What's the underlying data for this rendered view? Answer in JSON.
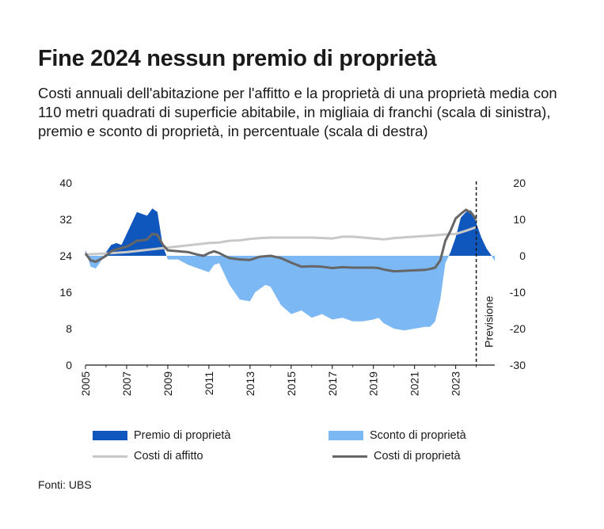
{
  "title": "Fine 2024 nessun premio di proprietà",
  "subtitle": "Costi annuali dell'abitazione per l'affitto e la proprietà di una proprietà media con 110 metri quadrati di superficie abitabile, in migliaia di franchi (scala di sinistra), premio e sconto di proprietà, in percentuale (scala di destra)",
  "source": "Fonti: UBS",
  "colors": {
    "premio": "#0f56bd",
    "sconto": "#7cb8f3",
    "affitto": "#c8c8c8",
    "proprieta": "#666666"
  },
  "chart_data": {
    "type": "area",
    "xlim": [
      2005,
      2024.9
    ],
    "ylim_left": [
      0,
      40
    ],
    "ylim_right": [
      -30,
      20
    ],
    "x_ticks": [
      "2005",
      "2007",
      "2009",
      "2011",
      "2013",
      "2015",
      "2017",
      "2019",
      "2021",
      "2023"
    ],
    "y_ticks_left": [
      "0",
      "8",
      "16",
      "24",
      "32",
      "40"
    ],
    "y_ticks_right": [
      "-30",
      "-20",
      "-10",
      "0",
      "10",
      "20"
    ],
    "forecast_start": 2024,
    "forecast_label": "Previsione",
    "series": [
      {
        "name": "Premio / Sconto di proprietà",
        "axis": "right",
        "x": [
          2005.0,
          2005.25,
          2005.5,
          2005.75,
          2006.0,
          2006.25,
          2006.5,
          2006.75,
          2007.0,
          2007.25,
          2007.5,
          2007.75,
          2008.0,
          2008.25,
          2008.5,
          2008.75,
          2009.0,
          2009.5,
          2010.0,
          2010.5,
          2011.0,
          2011.25,
          2011.5,
          2011.75,
          2012.0,
          2012.5,
          2013.0,
          2013.25,
          2013.75,
          2014.0,
          2014.5,
          2015.0,
          2015.5,
          2016.0,
          2016.5,
          2017.0,
          2017.5,
          2018.0,
          2018.5,
          2019.0,
          2019.25,
          2019.5,
          2020.0,
          2020.5,
          2021.0,
          2021.5,
          2021.75,
          2022.0,
          2022.25,
          2022.5,
          2022.75,
          2023.0,
          2023.25,
          2023.5,
          2023.75,
          2024.0,
          2024.25,
          2024.5,
          2024.75,
          2024.9
        ],
        "values": [
          1.5,
          -3,
          -3.5,
          -1.5,
          1,
          3,
          3.5,
          3,
          6,
          9,
          12,
          11.5,
          11,
          13,
          12,
          3,
          -1,
          -1,
          -2.5,
          -3.5,
          -4.5,
          -2.5,
          -2,
          -5,
          -8,
          -12,
          -12.5,
          -10,
          -8,
          -8.5,
          -13.5,
          -16,
          -15,
          -17,
          -16,
          -17.5,
          -17,
          -18,
          -18,
          -17.5,
          -17,
          -18.5,
          -20,
          -20.5,
          -20,
          -19.5,
          -19.5,
          -18,
          -12,
          -2,
          1,
          5,
          10.5,
          12,
          12.5,
          9,
          5,
          2,
          0,
          -1.5
        ]
      },
      {
        "name": "Costi di affitto",
        "axis": "left",
        "x": [
          2005.0,
          2006.0,
          2007.0,
          2008.0,
          2009.0,
          2010.0,
          2011.0,
          2011.5,
          2012.0,
          2012.5,
          2013.0,
          2013.5,
          2014.0,
          2015.0,
          2016.0,
          2017.0,
          2017.5,
          2018.0,
          2018.5,
          2019.0,
          2019.5,
          2020.0,
          2021.0,
          2022.0,
          2022.5,
          2023.0,
          2023.5,
          2024.0
        ],
        "values": [
          24.3,
          24.5,
          24.8,
          25.3,
          25.8,
          26.3,
          26.8,
          26.9,
          27.3,
          27.4,
          27.7,
          27.9,
          28.0,
          28.0,
          28.0,
          27.8,
          28.2,
          28.2,
          28.0,
          27.8,
          27.6,
          27.9,
          28.2,
          28.5,
          28.7,
          28.8,
          29.5,
          30.3
        ]
      },
      {
        "name": "Costi di proprietà",
        "axis": "left",
        "x": [
          2005.0,
          2005.25,
          2005.5,
          2005.75,
          2006.0,
          2006.25,
          2006.5,
          2006.75,
          2007.0,
          2007.25,
          2007.5,
          2007.75,
          2008.0,
          2008.25,
          2008.5,
          2008.75,
          2009.0,
          2009.5,
          2010.0,
          2010.5,
          2010.75,
          2011.0,
          2011.25,
          2011.5,
          2011.75,
          2012.0,
          2012.5,
          2013.0,
          2013.5,
          2014.0,
          2014.5,
          2015.0,
          2015.5,
          2016.0,
          2016.5,
          2017.0,
          2017.5,
          2018.0,
          2018.5,
          2019.0,
          2019.25,
          2019.5,
          2020.0,
          2020.5,
          2021.0,
          2021.5,
          2021.75,
          2022.0,
          2022.25,
          2022.5,
          2022.75,
          2023.0,
          2023.25,
          2023.5,
          2023.75,
          2024.0
        ],
        "values": [
          24.5,
          23.0,
          22.7,
          23.3,
          24.0,
          25.0,
          25.4,
          25.7,
          26.0,
          26.6,
          27.3,
          27.4,
          27.6,
          28.8,
          28.6,
          26.5,
          25.2,
          25.0,
          24.8,
          24.2,
          24.0,
          24.6,
          25.0,
          24.6,
          24.0,
          23.5,
          23.2,
          23.1,
          23.8,
          24.0,
          23.5,
          22.5,
          21.6,
          21.7,
          21.6,
          21.3,
          21.5,
          21.4,
          21.4,
          21.4,
          21.3,
          21.0,
          20.6,
          20.7,
          20.8,
          20.9,
          21.1,
          21.4,
          23.0,
          27.3,
          29.5,
          32.2,
          33.2,
          34.1,
          33.5,
          32.0
        ]
      }
    ],
    "legend": {
      "premio": "Premio di proprietà",
      "sconto": "Sconto di proprietà",
      "affitto": "Costi di affitto",
      "proprieta": "Costi di proprietà"
    },
    "grid": false
  }
}
